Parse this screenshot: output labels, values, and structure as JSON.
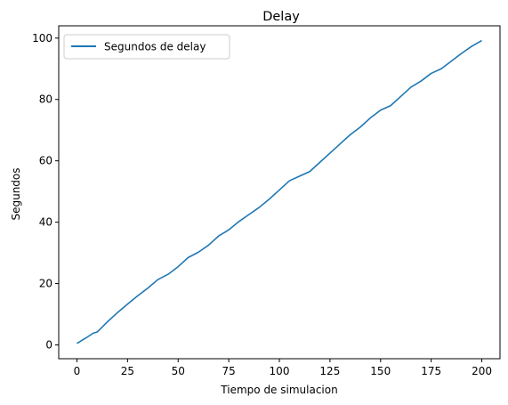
{
  "chart_data": {
    "type": "line",
    "title": "Delay",
    "xlabel": "Tiempo de simulacion",
    "ylabel": "Segundos",
    "xlim": [
      -9,
      209
    ],
    "ylim": [
      -4.5,
      104
    ],
    "xticks": [
      0,
      25,
      50,
      75,
      100,
      125,
      150,
      175,
      200
    ],
    "yticks": [
      0,
      20,
      40,
      60,
      80,
      100
    ],
    "grid": false,
    "legend_position": "upper-left",
    "series": [
      {
        "name": "Segundos de delay",
        "color": "#1f77b4",
        "x": [
          0,
          5,
          8,
          10,
          15,
          20,
          25,
          30,
          35,
          40,
          45,
          50,
          55,
          60,
          65,
          70,
          75,
          80,
          85,
          90,
          95,
          100,
          105,
          110,
          115,
          120,
          125,
          130,
          135,
          140,
          145,
          150,
          155,
          160,
          165,
          170,
          175,
          180,
          185,
          190,
          195,
          200
        ],
        "y": [
          0.5,
          2.5,
          3.8,
          4.2,
          7.5,
          10.5,
          13.3,
          16.0,
          18.5,
          21.3,
          23.0,
          25.5,
          28.5,
          30.2,
          32.5,
          35.5,
          37.5,
          40.2,
          42.5,
          44.8,
          47.5,
          50.5,
          53.5,
          55.0,
          56.5,
          59.5,
          62.5,
          65.5,
          68.5,
          71.0,
          74.0,
          76.5,
          78.0,
          81.0,
          84.0,
          86.0,
          88.5,
          90.0,
          92.5,
          95.0,
          97.3,
          99.2
        ]
      }
    ]
  }
}
